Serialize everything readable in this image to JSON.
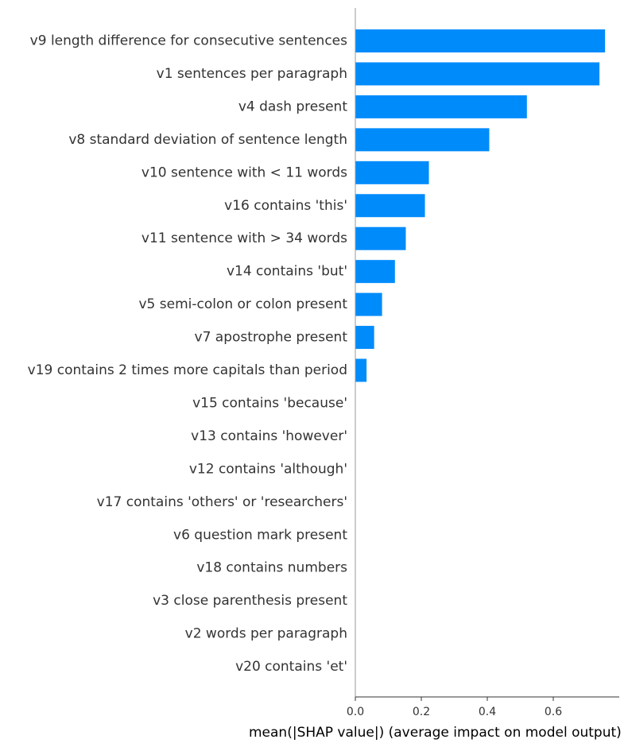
{
  "chart_data": {
    "type": "bar",
    "orientation": "horizontal",
    "title": "",
    "xlabel": "mean(|SHAP value|) (average impact on model output)",
    "ylabel": "",
    "xlim": [
      0,
      0.79
    ],
    "xticks": [
      "0.0",
      "0.2",
      "0.4",
      "0.6"
    ],
    "grid": false,
    "legend": "none",
    "bar_color": "#008bfb",
    "categories": [
      "v9 length difference for consecutive sentences",
      "v1 sentences per paragraph",
      "v4 dash present",
      "v8 standard deviation of sentence length",
      "v10 sentence with < 11 words",
      "v16 contains 'this'",
      "v11 sentence with > 34 words",
      "v14 contains 'but'",
      "v5 semi-colon or colon present",
      "v7 apostrophe present",
      "v19 contains 2 times more capitals than period",
      "v15 contains 'because'",
      "v13 contains 'however'",
      "v12 contains 'although'",
      "v17 contains 'others' or 'researchers'",
      "v6 question mark present",
      "v18 contains numbers",
      "v3 close parenthesis present",
      "v2 words per paragraph",
      "v20 contains 'et'"
    ],
    "values": [
      0.757,
      0.74,
      0.52,
      0.406,
      0.223,
      0.211,
      0.153,
      0.12,
      0.081,
      0.057,
      0.034,
      0,
      0,
      0,
      0,
      0,
      0,
      0,
      0,
      0
    ]
  }
}
